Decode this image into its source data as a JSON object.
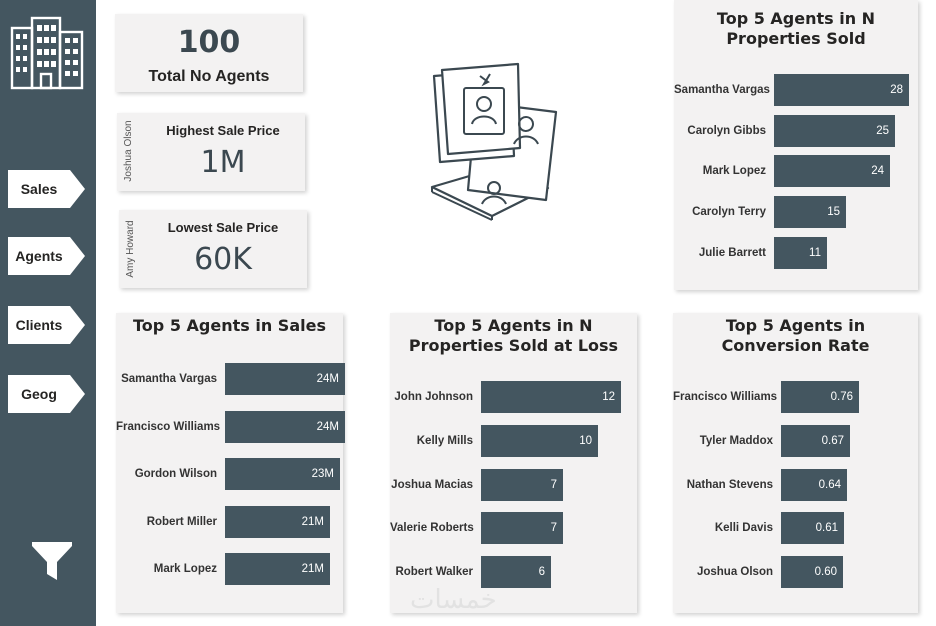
{
  "nav": {
    "items": [
      {
        "label": "Sales"
      },
      {
        "label": "Agents"
      },
      {
        "label": "Clients"
      },
      {
        "label": "Geog"
      }
    ],
    "logo_icon": "building-icon",
    "filter_icon": "filter-icon"
  },
  "kpis": {
    "total_agents": {
      "value": "100",
      "label": "Total No Agents"
    },
    "highest_sale": {
      "value": "1M",
      "label": "Highest Sale Price",
      "agent": "Joshua Olson"
    },
    "lowest_sale": {
      "value": "60K",
      "label": "Lowest Sale Price",
      "agent": "Amy Howard"
    }
  },
  "illustration": {
    "icon": "agent-profile-cards-icon"
  },
  "colors": {
    "sidebar": "#445660",
    "bar": "#445660",
    "card": "#f3f2f2"
  },
  "chart_data": [
    {
      "type": "bar",
      "title": "Top 5 Agents in N Properties Sold",
      "categories": [
        "Samantha Vargas",
        "Carolyn Gibbs",
        "Mark Lopez",
        "Carolyn Terry",
        "Julie Barrett"
      ],
      "values": [
        28,
        25,
        24,
        15,
        11
      ],
      "labels": [
        "28",
        "25",
        "24",
        "15",
        "11"
      ]
    },
    {
      "type": "bar",
      "title": "Top 5 Agents in Sales",
      "categories": [
        "Samantha Vargas",
        "Francisco Williams",
        "Gordon Wilson",
        "Robert Miller",
        "Mark Lopez"
      ],
      "values": [
        24,
        24,
        23,
        21,
        21
      ],
      "labels": [
        "24M",
        "24M",
        "23M",
        "21M",
        "21M"
      ]
    },
    {
      "type": "bar",
      "title": "Top 5 Agents in N Properties Sold at Loss",
      "categories": [
        "John Johnson",
        "Kelly Mills",
        "Joshua Macias",
        "Valerie Roberts",
        "Robert Walker"
      ],
      "values": [
        12,
        10,
        7,
        7,
        6
      ],
      "labels": [
        "12",
        "10",
        "7",
        "7",
        "6"
      ]
    },
    {
      "type": "bar",
      "title": "Top 5 Agents in Conversion Rate",
      "categories": [
        "Francisco Williams",
        "Tyler Maddox",
        "Nathan Stevens",
        "Kelli Davis",
        "Joshua Olson"
      ],
      "values": [
        0.76,
        0.67,
        0.64,
        0.61,
        0.6
      ],
      "labels": [
        "0.76",
        "0.67",
        "0.64",
        "0.61",
        "0.60"
      ]
    }
  ],
  "watermark": "خمسات"
}
